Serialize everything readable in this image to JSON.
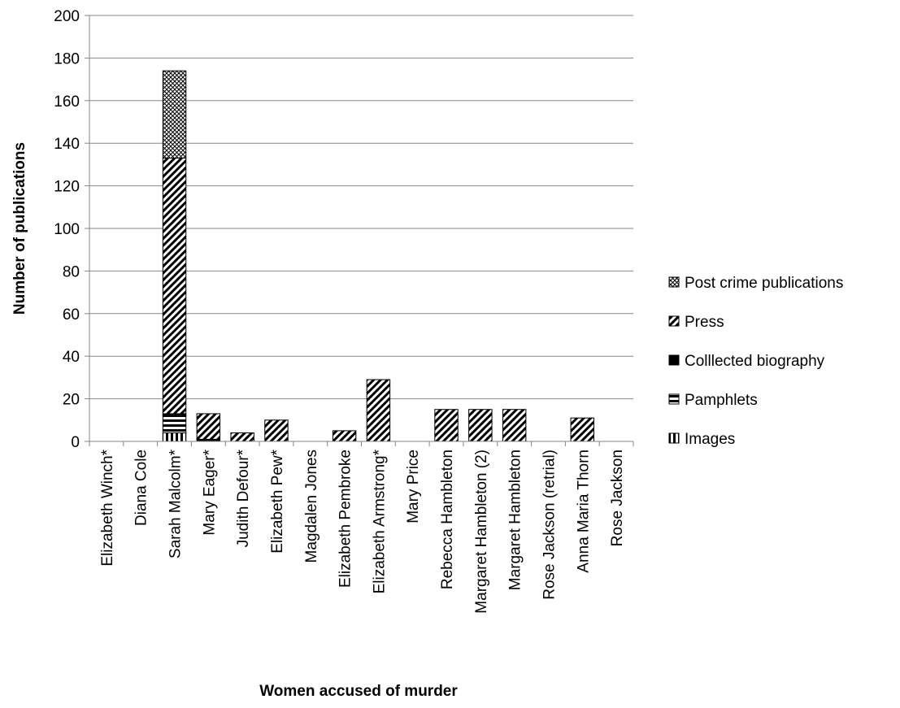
{
  "chart_data": {
    "type": "bar",
    "stacked": true,
    "title": "",
    "xlabel": "Women accused of murder",
    "ylabel": "Number of publications",
    "ylim": [
      0,
      200
    ],
    "yticks": [
      0,
      20,
      40,
      60,
      80,
      100,
      120,
      140,
      160,
      180,
      200
    ],
    "grid": true,
    "legend_position": "right",
    "categories": [
      "Elizabeth Winch*",
      "Diana Cole",
      "Sarah Malcolm*",
      "Mary Eager*",
      "Judith Defour*",
      "Elizabeth Pew*",
      "Magdalen Jones",
      "Elizabeth Pembroke",
      "Elizabeth Armstrong*",
      "Mary Price",
      "Rebecca Hambleton",
      "Margaret Hambleton (2)",
      "Margaret Hambleton",
      "Rose Jackson (retrial)",
      "Anna Maria Thorn",
      "Rose Jackson"
    ],
    "series": [
      {
        "name": "Images",
        "pattern": "vertical-stripes",
        "values": [
          0,
          0,
          4,
          0,
          0,
          0,
          0,
          0,
          0,
          0,
          0,
          0,
          0,
          0,
          0,
          0
        ]
      },
      {
        "name": "Pamphlets",
        "pattern": "horizontal-stripes",
        "values": [
          0,
          0,
          8,
          0,
          0,
          0,
          0,
          0,
          0,
          0,
          0,
          0,
          0,
          0,
          0,
          0
        ]
      },
      {
        "name": "Colllected biography",
        "pattern": "solid-black",
        "values": [
          0,
          0,
          1,
          1,
          0,
          0,
          0,
          0,
          0,
          0,
          0,
          0,
          0,
          0,
          0,
          0
        ]
      },
      {
        "name": "Press",
        "pattern": "diagonal-stripes",
        "values": [
          0,
          0,
          120,
          12,
          4,
          10,
          0,
          5,
          29,
          0,
          15,
          15,
          15,
          0,
          11,
          0
        ]
      },
      {
        "name": "Post crime publications",
        "pattern": "crosshatch",
        "values": [
          0,
          0,
          41,
          0,
          0,
          0,
          0,
          0,
          0,
          0,
          0,
          0,
          0,
          0,
          0,
          0
        ]
      }
    ]
  }
}
